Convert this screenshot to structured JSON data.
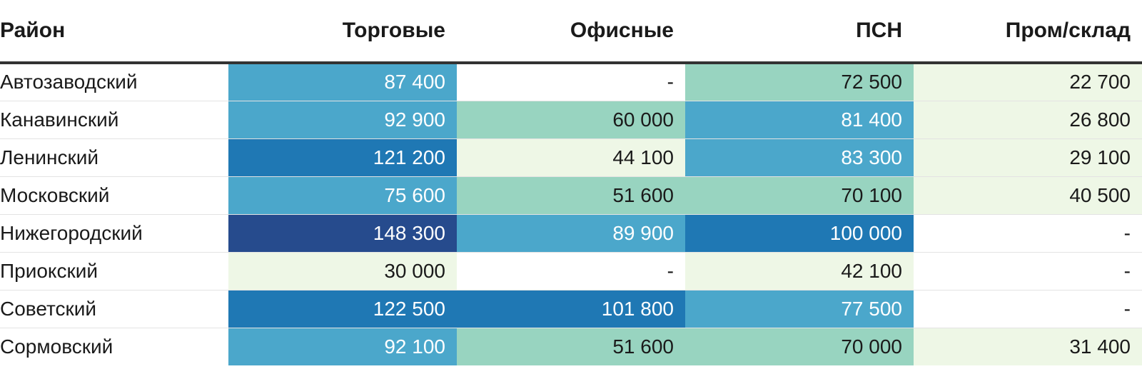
{
  "chart_data": {
    "type": "heatmap",
    "columns": [
      "Район",
      "Торговые",
      "Офисные",
      "ПСН",
      "Пром/склад"
    ],
    "rows": [
      {
        "district": "Автозаводский",
        "values": [
          87400,
          null,
          72500,
          22700
        ]
      },
      {
        "district": "Канавинский",
        "values": [
          92900,
          60000,
          81400,
          26800
        ]
      },
      {
        "district": "Ленинский",
        "values": [
          121200,
          44100,
          83300,
          29100
        ]
      },
      {
        "district": "Московский",
        "values": [
          75600,
          51600,
          70100,
          40500
        ]
      },
      {
        "district": "Нижегородский",
        "values": [
          148300,
          89900,
          100000,
          null
        ]
      },
      {
        "district": "Приокский",
        "values": [
          30000,
          null,
          42100,
          null
        ]
      },
      {
        "district": "Советский",
        "values": [
          122500,
          101800,
          77500,
          null
        ]
      },
      {
        "district": "Сормовский",
        "values": [
          92100,
          51600,
          70000,
          31400
        ]
      }
    ],
    "missing_label": "-",
    "color_scale": [
      {
        "min": 0,
        "max": 45000,
        "bg": "#eef7e6",
        "text": "#1a1a1a"
      },
      {
        "min": 45000,
        "max": 75000,
        "bg": "#98d4c0",
        "text": "#1a1a1a"
      },
      {
        "min": 75000,
        "max": 95000,
        "bg": "#4ba7cb",
        "text": "#ffffff"
      },
      {
        "min": 95000,
        "max": 135000,
        "bg": "#1f78b4",
        "text": "#ffffff"
      },
      {
        "min": 135000,
        "max": 1000000,
        "bg": "#264b8d",
        "text": "#ffffff"
      }
    ],
    "missing_bg": "#ffffff",
    "missing_text": "#1a1a1a"
  }
}
